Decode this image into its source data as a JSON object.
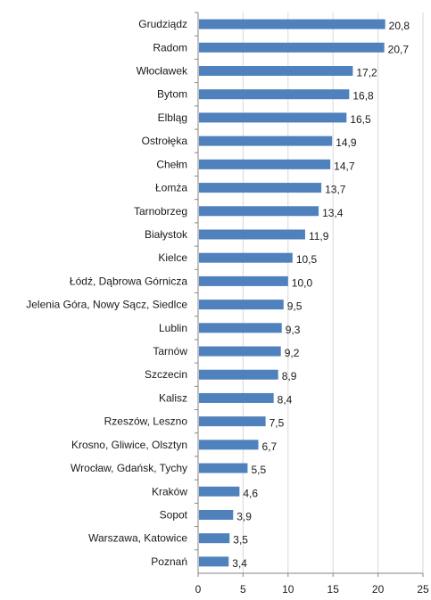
{
  "chart_data": {
    "type": "bar",
    "orientation": "horizontal",
    "categories": [
      "Grudziądz",
      "Radom",
      "Włocławek",
      "Bytom",
      "Elbląg",
      "Ostrołęka",
      "Chełm",
      "Łomża",
      "Tarnobrzeg",
      "Białystok",
      "Kielce",
      "Łódź, Dąbrowa Górnicza",
      "Jelenia Góra, Nowy Sącz, Siedlce",
      "Lublin",
      "Tarnów",
      "Szczecin",
      "Kalisz",
      "Rzeszów, Leszno",
      "Krosno, Gliwice, Olsztyn",
      "Wrocław, Gdańsk, Tychy",
      "Kraków",
      "Sopot",
      "Warszawa, Katowice",
      "Poznań"
    ],
    "values": [
      20.8,
      20.7,
      17.2,
      16.8,
      16.5,
      14.9,
      14.7,
      13.7,
      13.4,
      11.9,
      10.5,
      10.0,
      9.5,
      9.3,
      9.2,
      8.9,
      8.4,
      7.5,
      6.7,
      5.5,
      4.6,
      3.9,
      3.5,
      3.4
    ],
    "value_labels": [
      "20,8",
      "20,7",
      "17,2",
      "16,8",
      "16,5",
      "14,9",
      "14,7",
      "13,7",
      "13,4",
      "11,9",
      "10,5",
      "10,0",
      "9,5",
      "9,3",
      "9,2",
      "8,9",
      "8,4",
      "7,5",
      "6,7",
      "5,5",
      "4,6",
      "3,9",
      "3,5",
      "3,4"
    ],
    "x_ticks": [
      0,
      5,
      10,
      15,
      20,
      25
    ],
    "xlim": [
      0,
      25
    ],
    "grid": "vertical",
    "title": "",
    "xlabel": "",
    "ylabel": "",
    "colors": {
      "bar": "#4f81bd",
      "grid": "#d9d9d9",
      "axis": "#868686",
      "text": "#1a1a1a"
    }
  }
}
